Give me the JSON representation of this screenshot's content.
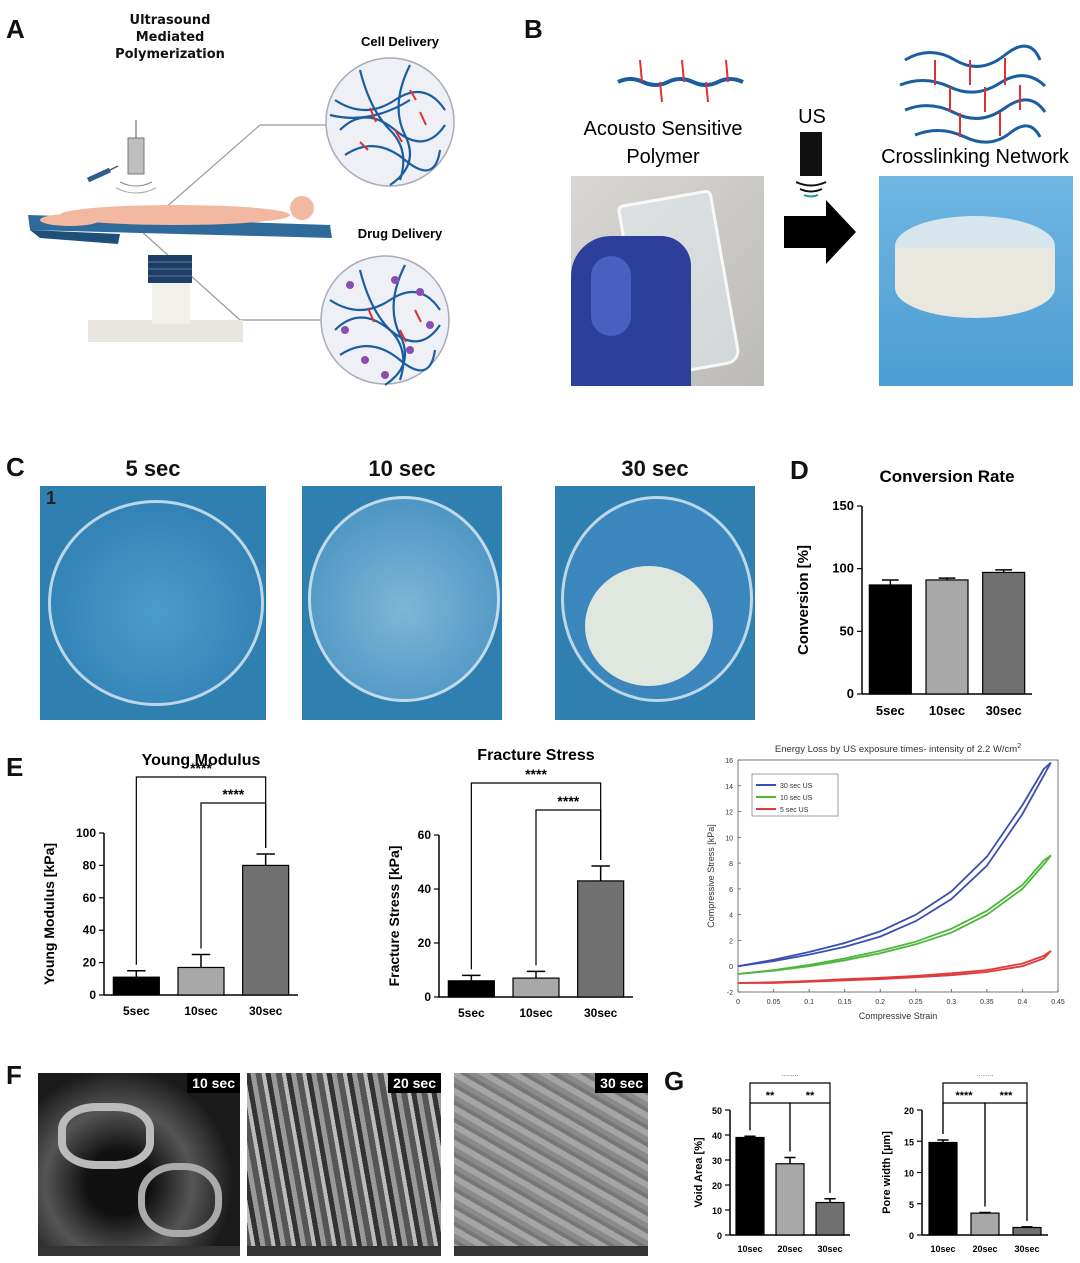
{
  "panels": {
    "A": "A",
    "B": "B",
    "C": "C",
    "D": "D",
    "E": "E",
    "F": "F",
    "G": "G"
  },
  "panelA": {
    "title": "Ultrasound Mediated\nPolymerization",
    "cell_label": "Cell Delivery",
    "drug_label": "Drug Delivery"
  },
  "panelB": {
    "polymer_label_1": "Acousto Sensitive",
    "polymer_label_2": "Polymer",
    "us_label": "US",
    "network_label": "Crosslinking Network"
  },
  "panelC": {
    "labels": [
      "5 sec",
      "10 sec",
      "30 sec"
    ]
  },
  "panelF": {
    "labels": [
      "10 sec",
      "20 sec",
      "30 sec"
    ]
  },
  "colors": {
    "blue_bg": "#2f7fb0",
    "tube_blue": "#1a5da0",
    "red": "#e03030",
    "black": "#000000",
    "lightgray": "#a8a8a8",
    "midgray": "#707070"
  },
  "chart_data": [
    {
      "id": "D",
      "type": "bar",
      "title": "Conversion Rate",
      "ylabel": "Conversion [%]",
      "ylim": [
        0,
        150
      ],
      "yticks": [
        0,
        50,
        100,
        150
      ],
      "categories": [
        "5sec",
        "10sec",
        "30sec"
      ],
      "values": [
        87,
        91,
        97
      ],
      "errors": [
        4,
        1.5,
        2
      ],
      "colors": [
        "#000000",
        "#a8a8a8",
        "#707070"
      ]
    },
    {
      "id": "E1",
      "type": "bar",
      "title": "Young Modulus",
      "ylabel": "Young Modulus [kPa]",
      "ylim": [
        0,
        100
      ],
      "yticks": [
        0,
        20,
        40,
        60,
        80,
        100
      ],
      "categories": [
        "5sec",
        "10sec",
        "30sec"
      ],
      "values": [
        11,
        17,
        80
      ],
      "errors": [
        4,
        8,
        7
      ],
      "colors": [
        "#000000",
        "#a8a8a8",
        "#707070"
      ],
      "significance": [
        {
          "from": 0,
          "to": 2,
          "label": "****"
        },
        {
          "from": 1,
          "to": 2,
          "label": "****"
        }
      ]
    },
    {
      "id": "E2",
      "type": "bar",
      "title": "Fracture Stress",
      "ylabel": "Fracture Stress [kPa]",
      "ylim": [
        0,
        60
      ],
      "yticks": [
        0,
        20,
        40,
        60
      ],
      "categories": [
        "5sec",
        "10sec",
        "30sec"
      ],
      "values": [
        6,
        7,
        43
      ],
      "errors": [
        2,
        2.5,
        5.5
      ],
      "colors": [
        "#000000",
        "#a8a8a8",
        "#707070"
      ],
      "significance": [
        {
          "from": 0,
          "to": 2,
          "label": "****"
        },
        {
          "from": 1,
          "to": 2,
          "label": "****"
        }
      ]
    },
    {
      "id": "E3",
      "type": "line",
      "title": "Energy Loss by US exposure times- intensity of 2.2 W/cm²",
      "title_main": "Energy Loss by US exposure times- intensity of ",
      "title_value": "2.2 W/cm",
      "title_sup": "2",
      "xlabel": "Compressive Strain",
      "ylabel": "Compressive Stress [kPa]",
      "xlim": [
        0,
        0.45
      ],
      "ylim": [
        -2,
        16
      ],
      "xticks": [
        "0",
        "0.05",
        "0.1",
        "0.15",
        "0.2",
        "0.25",
        "0.3",
        "0.35",
        "0.4",
        "0.45"
      ],
      "yticks": [
        "-2",
        "0",
        "2",
        "4",
        "6",
        "8",
        "10",
        "12",
        "14",
        "16"
      ],
      "series": [
        {
          "name": "30 sec US",
          "color": "#3a4fb0",
          "x": [
            0,
            0.05,
            0.1,
            0.15,
            0.2,
            0.25,
            0.3,
            0.35,
            0.4,
            0.43,
            0.44
          ],
          "y": [
            0,
            0.5,
            1.1,
            1.8,
            2.7,
            4.0,
            5.8,
            8.5,
            12.5,
            15.3,
            15.8
          ],
          "y2": [
            0,
            0.4,
            0.9,
            1.5,
            2.3,
            3.5,
            5.2,
            7.8,
            11.8,
            14.8,
            15.8
          ]
        },
        {
          "name": "10 sec US",
          "color": "#4cb83a",
          "x": [
            0,
            0.05,
            0.1,
            0.15,
            0.2,
            0.25,
            0.3,
            0.35,
            0.4,
            0.43,
            0.44
          ],
          "y": [
            -0.6,
            -0.3,
            0.1,
            0.6,
            1.2,
            1.9,
            2.9,
            4.3,
            6.3,
            8.2,
            8.6
          ],
          "y2": [
            -0.6,
            -0.35,
            0,
            0.45,
            1.0,
            1.7,
            2.6,
            4.0,
            6.0,
            7.9,
            8.6
          ]
        },
        {
          "name": "5 sec US",
          "color": "#e03a3a",
          "x": [
            0,
            0.05,
            0.1,
            0.15,
            0.2,
            0.25,
            0.3,
            0.35,
            0.4,
            0.43,
            0.44
          ],
          "y": [
            -1.3,
            -1.25,
            -1.15,
            -1.0,
            -0.9,
            -0.75,
            -0.55,
            -0.3,
            0.2,
            0.8,
            1.2
          ],
          "y2": [
            -1.3,
            -1.3,
            -1.2,
            -1.1,
            -1.0,
            -0.85,
            -0.7,
            -0.45,
            0.0,
            0.6,
            1.2
          ]
        }
      ],
      "legend": "top-left"
    },
    {
      "id": "G1",
      "type": "bar",
      "ylabel": "Void Area [%]",
      "ylim": [
        0,
        50
      ],
      "yticks": [
        0,
        10,
        20,
        30,
        40,
        50
      ],
      "categories": [
        "10sec",
        "20sec",
        "30sec"
      ],
      "values": [
        39,
        28.5,
        13
      ],
      "errors": [
        0.5,
        2.5,
        1.5
      ],
      "colors": [
        "#000000",
        "#a8a8a8",
        "#707070"
      ],
      "significance": [
        {
          "from": 0,
          "to": 2,
          "label": "****"
        },
        {
          "from": 0,
          "to": 1,
          "label": "**"
        },
        {
          "from": 1,
          "to": 2,
          "label": "**"
        }
      ]
    },
    {
      "id": "G2",
      "type": "bar",
      "ylabel": "Pore width [µm]",
      "ylim": [
        0,
        20
      ],
      "yticks": [
        0,
        5,
        10,
        15,
        20
      ],
      "categories": [
        "10sec",
        "20sec",
        "30sec"
      ],
      "values": [
        14.8,
        3.5,
        1.2
      ],
      "errors": [
        0.4,
        0.1,
        0.1
      ],
      "colors": [
        "#000000",
        "#a8a8a8",
        "#707070"
      ],
      "significance": [
        {
          "from": 0,
          "to": 2,
          "label": "****"
        },
        {
          "from": 0,
          "to": 1,
          "label": "****"
        },
        {
          "from": 1,
          "to": 2,
          "label": "***"
        }
      ]
    }
  ]
}
